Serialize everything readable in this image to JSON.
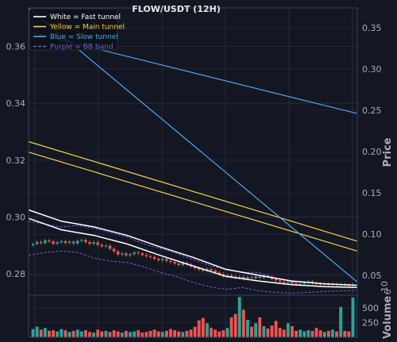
{
  "chart_data": {
    "type": "line",
    "title": "FLOW/USDT (12H)",
    "colors": {
      "background": "#131722",
      "grid": "#2a2f3d",
      "axis_text": "#a8adb8",
      "up": "#26a69a",
      "down": "#ef5350",
      "fast": "#ffffff",
      "main": "#f7cf4a",
      "slow": "#4aa8f0",
      "bb": "#7b5cd6"
    },
    "legend": {
      "placement": "top-left",
      "entries": [
        {
          "label": "White = Fast tunnel",
          "color": "#ffffff",
          "dash": false
        },
        {
          "label": "Yellow = Main tunnel",
          "color": "#f7cf4a",
          "dash": false
        },
        {
          "label": "Blue = Slow tunnel",
          "color": "#4aa8f0",
          "dash": false
        },
        {
          "label": "Purple = BB band",
          "color": "#7b5cd6",
          "dash": true
        }
      ]
    },
    "price_panel": {
      "left_axis": {
        "range": [
          0.2725,
          0.3735
        ],
        "ticks": [
          "0.36",
          "0.34",
          "0.32",
          "0.30",
          "0.28"
        ],
        "tick_values": [
          0.36,
          0.34,
          0.32,
          0.3,
          0.28
        ]
      },
      "right_axis": {
        "label": "Price",
        "range": [
          0.026,
          0.374
        ],
        "ticks": [
          "0.35",
          "0.30",
          "0.25",
          "0.20",
          "0.15",
          "0.10",
          "0.05"
        ],
        "tick_values": [
          0.35,
          0.3,
          0.25,
          0.2,
          0.15,
          0.1,
          0.05
        ]
      },
      "series": [
        {
          "name": "Fast tunnel (upper)",
          "axis": "left",
          "color": "#ffffff",
          "width": 1.5,
          "x": [
            0,
            10,
            20,
            30,
            40,
            50,
            60,
            70,
            80,
            90,
            100
          ],
          "y": [
            0.3025,
            0.2985,
            0.2965,
            0.2935,
            0.2895,
            0.2858,
            0.2816,
            0.2795,
            0.2775,
            0.2765,
            0.276
          ]
        },
        {
          "name": "Fast tunnel (lower)",
          "axis": "left",
          "color": "#ffffff",
          "width": 1.5,
          "x": [
            0,
            10,
            20,
            30,
            40,
            50,
            60,
            70,
            80,
            90,
            100
          ],
          "y": [
            0.2995,
            0.2955,
            0.2935,
            0.2905,
            0.2865,
            0.2828,
            0.2791,
            0.2775,
            0.2762,
            0.2755,
            0.2752
          ]
        },
        {
          "name": "Main tunnel (upper)",
          "axis": "left",
          "color": "#f7cf4a",
          "width": 1.2,
          "x": [
            0,
            100
          ],
          "y": [
            0.3265,
            0.2915
          ]
        },
        {
          "name": "Main tunnel (lower)",
          "axis": "left",
          "color": "#f7cf4a",
          "width": 1.2,
          "x": [
            0,
            100
          ],
          "y": [
            0.3228,
            0.288
          ]
        },
        {
          "name": "Slow tunnel (upper)",
          "axis": "right",
          "color": "#4aa8f0",
          "width": 1.2,
          "x": [
            0,
            100
          ],
          "y": [
            0.345,
            0.246
          ]
        },
        {
          "name": "Slow tunnel (lower)",
          "axis": "right",
          "color": "#4aa8f0",
          "width": 1.2,
          "x": [
            0,
            100
          ],
          "y": [
            0.374,
            0.042
          ]
        },
        {
          "name": "BB band (upper)",
          "axis": "left",
          "color": "#7b5cd6",
          "width": 1,
          "dash": true,
          "x": [
            0,
            5,
            10,
            15,
            20,
            25,
            30,
            35,
            40,
            45,
            50,
            55,
            60,
            65,
            70,
            75,
            80,
            85,
            90,
            95,
            100
          ],
          "y": [
            0.2985,
            0.2975,
            0.2965,
            0.297,
            0.296,
            0.2945,
            0.293,
            0.2905,
            0.289,
            0.2872,
            0.285,
            0.283,
            0.2815,
            0.2805,
            0.2805,
            0.2785,
            0.2772,
            0.277,
            0.2765,
            0.2762,
            0.276
          ]
        },
        {
          "name": "BB band (lower)",
          "axis": "left",
          "color": "#7b5cd6",
          "width": 1,
          "dash": true,
          "x": [
            0,
            5,
            10,
            15,
            20,
            25,
            30,
            35,
            40,
            45,
            50,
            55,
            60,
            65,
            70,
            75,
            80,
            85,
            90,
            95,
            100
          ],
          "y": [
            0.2865,
            0.2875,
            0.288,
            0.2875,
            0.2855,
            0.2845,
            0.284,
            0.2825,
            0.2805,
            0.279,
            0.277,
            0.2755,
            0.2745,
            0.2752,
            0.274,
            0.2735,
            0.2732,
            0.2735,
            0.2738,
            0.274,
            0.2742
          ]
        }
      ],
      "candles_close": [
        0.2905,
        0.2912,
        0.2908,
        0.2918,
        0.2914,
        0.2906,
        0.2911,
        0.2915,
        0.2909,
        0.2913,
        0.2907,
        0.2916,
        0.2919,
        0.2912,
        0.2906,
        0.2911,
        0.2902,
        0.2897,
        0.2899,
        0.2888,
        0.2879,
        0.2868,
        0.2872,
        0.2865,
        0.2869,
        0.2875,
        0.2872,
        0.2866,
        0.2862,
        0.2859,
        0.2853,
        0.2848,
        0.2852,
        0.2846,
        0.2842,
        0.2836,
        0.2831,
        0.2838,
        0.2833,
        0.2826,
        0.282,
        0.2815,
        0.2811,
        0.2817,
        0.2812,
        0.2805,
        0.2799,
        0.2791,
        0.2795,
        0.279,
        0.2786,
        0.2789,
        0.2783,
        0.2788,
        0.2785,
        0.2791,
        0.2786,
        0.2793,
        0.2789,
        0.2782,
        0.2777,
        0.2772,
        0.2768,
        0.2771,
        0.2766,
        0.2763,
        0.2765,
        0.2769,
        0.2773,
        0.2768,
        0.2765,
        0.2763,
        0.2766,
        0.2762,
        0.2765,
        0.2761,
        0.2764,
        0.2761,
        0.2759,
        0.2762
      ]
    },
    "volume_panel": {
      "label": "Volume",
      "exponent": "6",
      "range": [
        0,
        720000
      ],
      "ticks": [
        "500",
        "250"
      ],
      "tick_values": [
        500000,
        250000
      ],
      "values": [
        140000,
        180000,
        130000,
        160000,
        110000,
        120000,
        100000,
        140000,
        120000,
        90000,
        110000,
        130000,
        100000,
        120000,
        90000,
        80000,
        130000,
        100000,
        110000,
        90000,
        120000,
        100000,
        80000,
        110000,
        90000,
        100000,
        120000,
        80000,
        90000,
        110000,
        130000,
        100000,
        90000,
        110000,
        140000,
        120000,
        100000,
        90000,
        110000,
        130000,
        180000,
        290000,
        330000,
        240000,
        160000,
        130000,
        100000,
        120000,
        160000,
        340000,
        400000,
        690000,
        470000,
        300000,
        180000,
        240000,
        340000,
        190000,
        150000,
        200000,
        280000,
        160000,
        130000,
        240000,
        190000,
        110000,
        130000,
        100000,
        120000,
        110000,
        160000,
        120000,
        90000,
        110000,
        130000,
        100000,
        520000,
        110000,
        100000,
        680000
      ]
    }
  }
}
